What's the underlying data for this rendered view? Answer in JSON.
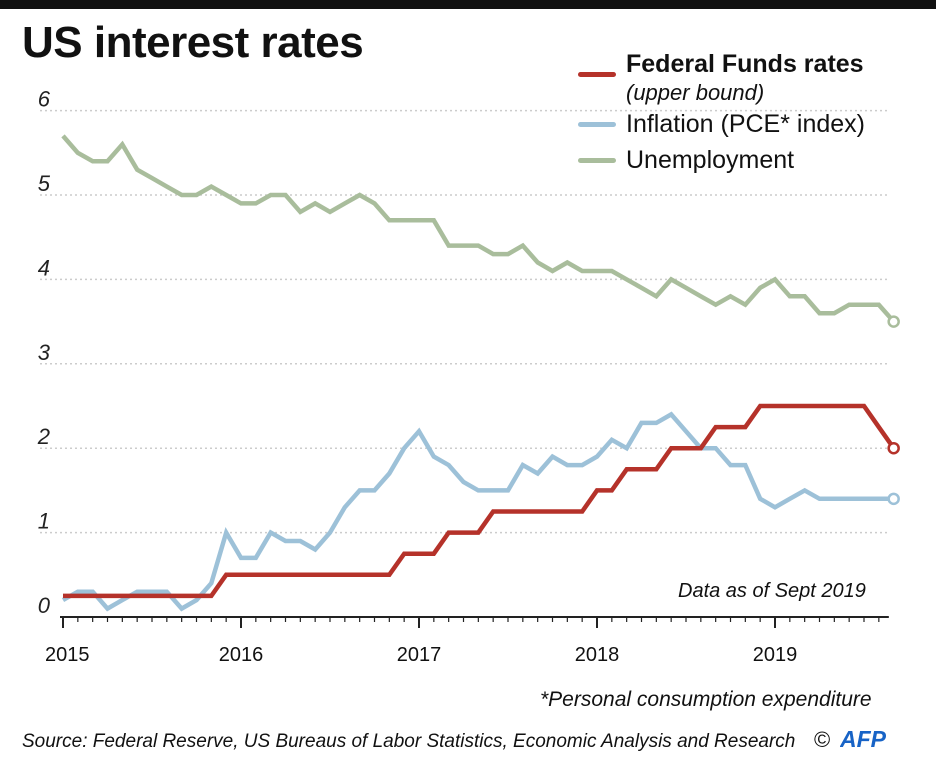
{
  "title": "US interest rates",
  "legend": {
    "fed_label": "Federal Funds rates",
    "fed_sublabel": "(upper bound)",
    "inflation_label": "Inflation (PCE* index)",
    "unemployment_label": "Unemployment"
  },
  "as_of": "Data as of Sept 2019",
  "footnote": "*Personal consumption expenditure",
  "source": "Source: Federal Reserve, US Bureaus of Labor Statistics, Economic Analysis and Research",
  "copyright": "©",
  "logo_text": "AFP",
  "colors": {
    "fed": "#b5322a",
    "inflation": "#9dc1d8",
    "unemployment": "#a9bd9c",
    "grid": "#cccccc",
    "axis": "#222222",
    "logo": "#1763c6"
  },
  "chart_data": {
    "type": "line",
    "x_start": "2015-01",
    "x_end": "2019-08",
    "x_tick_labels": [
      "2015",
      "2016",
      "2017",
      "2018",
      "2019"
    ],
    "ylim": [
      0,
      6
    ],
    "y_ticks": [
      0,
      1,
      2,
      3,
      4,
      5,
      6
    ],
    "grid": "horizontal dotted",
    "legend_position": "top-right",
    "series": [
      {
        "name": "Federal Funds rates (upper bound)",
        "color_key": "fed",
        "values": [
          0.25,
          0.25,
          0.25,
          0.25,
          0.25,
          0.25,
          0.25,
          0.25,
          0.25,
          0.25,
          0.25,
          0.5,
          0.5,
          0.5,
          0.5,
          0.5,
          0.5,
          0.5,
          0.5,
          0.5,
          0.5,
          0.5,
          0.5,
          0.75,
          0.75,
          0.75,
          1.0,
          1.0,
          1.0,
          1.25,
          1.25,
          1.25,
          1.25,
          1.25,
          1.25,
          1.25,
          1.5,
          1.5,
          1.75,
          1.75,
          1.75,
          2.0,
          2.0,
          2.0,
          2.25,
          2.25,
          2.25,
          2.5,
          2.5,
          2.5,
          2.5,
          2.5,
          2.5,
          2.5,
          2.5,
          2.25,
          2.0
        ]
      },
      {
        "name": "Inflation (PCE* index)",
        "color_key": "inflation",
        "values": [
          0.2,
          0.3,
          0.3,
          0.1,
          0.2,
          0.3,
          0.3,
          0.3,
          0.1,
          0.2,
          0.4,
          1.0,
          0.7,
          0.7,
          1.0,
          0.9,
          0.9,
          0.8,
          1.0,
          1.3,
          1.5,
          1.5,
          1.7,
          2.0,
          2.2,
          1.9,
          1.8,
          1.6,
          1.5,
          1.5,
          1.5,
          1.8,
          1.7,
          1.9,
          1.8,
          1.8,
          1.9,
          2.1,
          2.0,
          2.3,
          2.3,
          2.4,
          2.2,
          2.0,
          2.0,
          1.8,
          1.8,
          1.4,
          1.3,
          1.4,
          1.5,
          1.4,
          1.4,
          1.4,
          1.4,
          1.4,
          1.4
        ]
      },
      {
        "name": "Unemployment",
        "color_key": "unemployment",
        "values": [
          5.7,
          5.5,
          5.4,
          5.4,
          5.6,
          5.3,
          5.2,
          5.1,
          5.0,
          5.0,
          5.1,
          5.0,
          4.9,
          4.9,
          5.0,
          5.0,
          4.8,
          4.9,
          4.8,
          4.9,
          5.0,
          4.9,
          4.7,
          4.7,
          4.7,
          4.7,
          4.4,
          4.4,
          4.4,
          4.3,
          4.3,
          4.4,
          4.2,
          4.1,
          4.2,
          4.1,
          4.1,
          4.1,
          4.0,
          3.9,
          3.8,
          4.0,
          3.9,
          3.8,
          3.7,
          3.8,
          3.7,
          3.9,
          4.0,
          3.8,
          3.8,
          3.6,
          3.6,
          3.7,
          3.7,
          3.7,
          3.5
        ]
      }
    ]
  }
}
